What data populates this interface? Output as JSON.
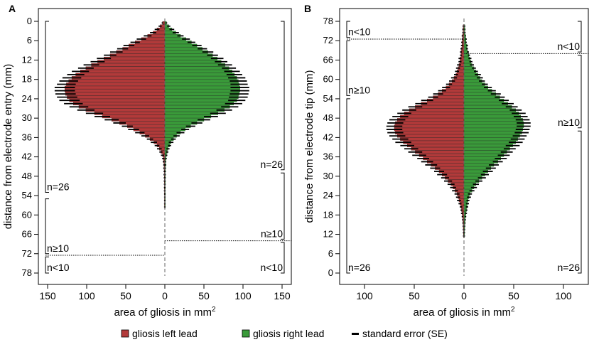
{
  "colors": {
    "left": "#b23a3a",
    "right": "#3a9a3a",
    "se": "#000000"
  },
  "legend": {
    "left_label": "gliosis left lead",
    "right_label": "gliosis right lead",
    "se_label": "standard error (SE)"
  },
  "chart_data": [
    {
      "type": "bar",
      "panel": "A",
      "orientation": "horizontal-mirrored",
      "title": "",
      "xlabel": "area of gliosis in mm",
      "xlabel_superscript": "2",
      "ylabel": "distance from electrode entry (mm)",
      "xlim": [
        -150,
        150
      ],
      "x_ticks": [
        -150,
        -100,
        -50,
        0,
        50,
        100,
        150
      ],
      "x_tick_labels": [
        "150",
        "100",
        "50",
        "0",
        "50",
        "100",
        "150"
      ],
      "ylim": [
        0,
        78
      ],
      "y_inverted": true,
      "y_ticks": [
        0,
        6,
        12,
        18,
        24,
        30,
        36,
        42,
        48,
        54,
        60,
        66,
        72,
        78
      ],
      "y_tick_labels": [
        "0",
        "6",
        "12",
        "18",
        "24",
        "30",
        "36",
        "42",
        "48",
        "54",
        "60",
        "66",
        "72",
        "78"
      ],
      "depth": [
        1,
        2,
        3,
        4,
        5,
        6,
        7,
        8,
        9,
        10,
        11,
        12,
        13,
        14,
        15,
        16,
        17,
        18,
        19,
        20,
        21,
        22,
        23,
        24,
        25,
        26,
        27,
        28,
        29,
        30,
        31,
        32,
        33,
        34,
        35,
        36,
        37,
        38,
        39,
        40,
        41,
        42,
        43,
        44,
        45,
        46,
        47,
        48,
        49,
        50,
        51,
        52,
        53,
        54,
        55,
        56,
        57,
        58
      ],
      "series": [
        {
          "name": "gliosis left lead",
          "values": [
            3,
            6,
            10,
            15,
            22,
            30,
            38,
            46,
            54,
            62,
            70,
            78,
            86,
            94,
            101,
            108,
            114,
            119,
            123,
            126,
            128,
            128,
            127,
            125,
            122,
            117,
            110,
            101,
            90,
            80,
            68,
            58,
            48,
            40,
            32,
            25,
            19,
            14,
            10,
            7,
            5,
            3,
            2,
            1.5,
            1,
            1,
            0.8,
            0.8,
            0.7,
            0.7,
            0.6,
            0.6,
            0.6,
            0.5,
            0.5,
            0.5,
            0.5,
            0.5
          ],
          "se": [
            1,
            2,
            3,
            4,
            5,
            6,
            6,
            7,
            7,
            8,
            8,
            9,
            9,
            10,
            10,
            11,
            11,
            12,
            12,
            12,
            13,
            13,
            13,
            13,
            13,
            12,
            12,
            11,
            11,
            10,
            9,
            8,
            7,
            7,
            6,
            5,
            4,
            4,
            3,
            3,
            2,
            2,
            1.5,
            1.2,
            1,
            1,
            0.8,
            0.8,
            0.7,
            0.7,
            0.6,
            0.6,
            0.6,
            0.5,
            0.5,
            0.5,
            0.5,
            0.5
          ]
        },
        {
          "name": "gliosis right lead",
          "values": [
            2,
            5,
            9,
            14,
            20,
            27,
            34,
            41,
            48,
            55,
            61,
            67,
            72,
            77,
            82,
            86,
            89,
            92,
            94,
            95,
            96,
            96,
            95,
            94,
            92,
            88,
            83,
            76,
            68,
            59,
            50,
            41,
            33,
            26,
            20,
            15,
            11,
            8,
            6,
            4,
            3,
            2,
            1.5,
            1,
            1,
            0.8,
            0.7,
            0.7,
            0.6,
            0.6,
            0.6,
            0.5,
            0.5,
            0.5,
            0.5,
            0.5,
            0.5,
            0.5
          ],
          "se": [
            1,
            2,
            3,
            4,
            4,
            5,
            5,
            6,
            6,
            7,
            7,
            8,
            8,
            9,
            9,
            10,
            10,
            11,
            11,
            11,
            12,
            12,
            12,
            12,
            11,
            11,
            11,
            10,
            10,
            9,
            8,
            7,
            6,
            5,
            5,
            4,
            3,
            3,
            2,
            2,
            1.5,
            1.2,
            1,
            0.8,
            0.8,
            0.7,
            0.6,
            0.6,
            0.6,
            0.5,
            0.5,
            0.5,
            0.5,
            0.5,
            0.5,
            0.5,
            0.5,
            0.5
          ]
        }
      ],
      "annotations": {
        "left": [
          {
            "label": "n=26",
            "from": 0,
            "to": 53
          },
          {
            "label": "n≥10",
            "from": 55,
            "to": 72
          },
          {
            "label": "n<10",
            "from": 73,
            "to": 78
          }
        ],
        "right": [
          {
            "label": "n=26",
            "from": 0,
            "to": 46
          },
          {
            "label": "n≥10",
            "from": 47,
            "to": 67.5
          },
          {
            "label": "n<10",
            "from": 68.5,
            "to": 78
          }
        ],
        "cutoff_left": 72.5,
        "cutoff_right": 68
      }
    },
    {
      "type": "bar",
      "panel": "B",
      "orientation": "horizontal-mirrored",
      "title": "",
      "xlabel": "area of gliosis in mm",
      "xlabel_superscript": "2",
      "ylabel": "distance from electrode tip (mm)",
      "xlim": [
        -125,
        125
      ],
      "x_ticks": [
        -100,
        -50,
        0,
        50,
        100
      ],
      "x_tick_labels": [
        "100",
        "50",
        "0",
        "50",
        "100"
      ],
      "ylim": [
        0,
        78
      ],
      "y_inverted": false,
      "y_ticks": [
        0,
        6,
        12,
        18,
        24,
        30,
        36,
        42,
        48,
        54,
        60,
        66,
        72,
        78
      ],
      "y_tick_labels": [
        "0",
        "6",
        "12",
        "18",
        "24",
        "30",
        "36",
        "42",
        "48",
        "54",
        "60",
        "66",
        "72",
        "78"
      ],
      "depth": [
        12,
        13,
        14,
        15,
        16,
        17,
        18,
        19,
        20,
        21,
        22,
        23,
        24,
        25,
        26,
        27,
        28,
        29,
        30,
        31,
        32,
        33,
        34,
        35,
        36,
        37,
        38,
        39,
        40,
        41,
        42,
        43,
        44,
        45,
        46,
        47,
        48,
        49,
        50,
        51,
        52,
        53,
        54,
        55,
        56,
        57,
        58,
        59,
        60,
        61,
        62,
        63,
        64,
        65,
        66,
        67,
        68,
        69,
        70,
        71,
        72,
        73,
        74,
        75,
        76,
        77
      ],
      "series": [
        {
          "name": "gliosis left lead",
          "values": [
            0.5,
            0.6,
            0.7,
            0.8,
            1,
            1.2,
            1.5,
            2,
            2.5,
            3,
            4,
            5,
            6,
            7,
            9,
            11,
            13,
            16,
            19,
            22,
            25,
            29,
            33,
            37,
            41,
            45,
            49,
            53,
            57,
            61,
            64,
            67,
            69,
            70,
            70,
            69,
            67,
            64,
            60,
            55,
            49,
            43,
            37,
            31,
            26,
            22,
            18,
            15,
            12,
            10,
            8,
            7,
            6,
            5,
            4,
            4,
            3,
            3,
            2.5,
            2,
            2,
            1.5,
            1.5,
            1,
            1,
            0.8
          ],
          "se": [
            0.5,
            0.5,
            0.5,
            0.5,
            0.6,
            0.7,
            0.8,
            1,
            1,
            1.2,
            1.5,
            2,
            2,
            2.5,
            3,
            3,
            3.5,
            4,
            4,
            5,
            5,
            5,
            6,
            6,
            6,
            7,
            7,
            7,
            7,
            8,
            8,
            8,
            8,
            8,
            8,
            8,
            8,
            8,
            7,
            7,
            7,
            6,
            6,
            5,
            5,
            4,
            4,
            3,
            3,
            3,
            2,
            2,
            2,
            2,
            1.5,
            1.5,
            1,
            1,
            1,
            1,
            0.8,
            0.8,
            0.8,
            0.6,
            0.6,
            0.5
          ]
        },
        {
          "name": "gliosis right lead",
          "values": [
            0.5,
            0.6,
            0.7,
            0.8,
            1,
            1.2,
            1.5,
            2,
            2.5,
            3,
            3.5,
            4,
            5,
            6,
            8,
            10,
            12,
            15,
            18,
            21,
            24,
            27,
            30,
            34,
            37,
            40,
            43,
            46,
            49,
            52,
            54,
            56,
            58,
            59,
            60,
            60,
            59,
            57,
            55,
            52,
            48,
            44,
            40,
            36,
            32,
            28,
            24,
            21,
            18,
            16,
            14,
            12,
            10,
            8,
            7,
            6,
            5,
            4,
            3,
            3,
            2,
            2,
            1.5,
            1,
            1,
            0.8
          ],
          "se": [
            0.5,
            0.5,
            0.5,
            0.5,
            0.6,
            0.7,
            0.8,
            1,
            1,
            1.2,
            1.5,
            1.5,
            2,
            2,
            2.5,
            3,
            3,
            3.5,
            4,
            4,
            5,
            5,
            5,
            5,
            6,
            6,
            6,
            6,
            7,
            7,
            7,
            7,
            7,
            7,
            7,
            7,
            7,
            7,
            7,
            6,
            6,
            6,
            5,
            5,
            5,
            4,
            4,
            3,
            3,
            3,
            3,
            2,
            2,
            2,
            1.5,
            1.5,
            1,
            1,
            1,
            1,
            0.8,
            0.8,
            0.6,
            0.6,
            0.5,
            0.5
          ]
        }
      ],
      "annotations": {
        "left": [
          {
            "label": "n=26",
            "from": 0,
            "to": 54
          },
          {
            "label": "n≥10",
            "from": 55,
            "to": 72
          },
          {
            "label": "n<10",
            "from": 73,
            "to": 78
          }
        ],
        "right": [
          {
            "label": "n=26",
            "from": 0,
            "to": 44
          },
          {
            "label": "n≥10",
            "from": 45,
            "to": 67.5
          },
          {
            "label": "n<10",
            "from": 68.5,
            "to": 78
          }
        ],
        "cutoff_left": 72.5,
        "cutoff_right": 68
      }
    }
  ]
}
